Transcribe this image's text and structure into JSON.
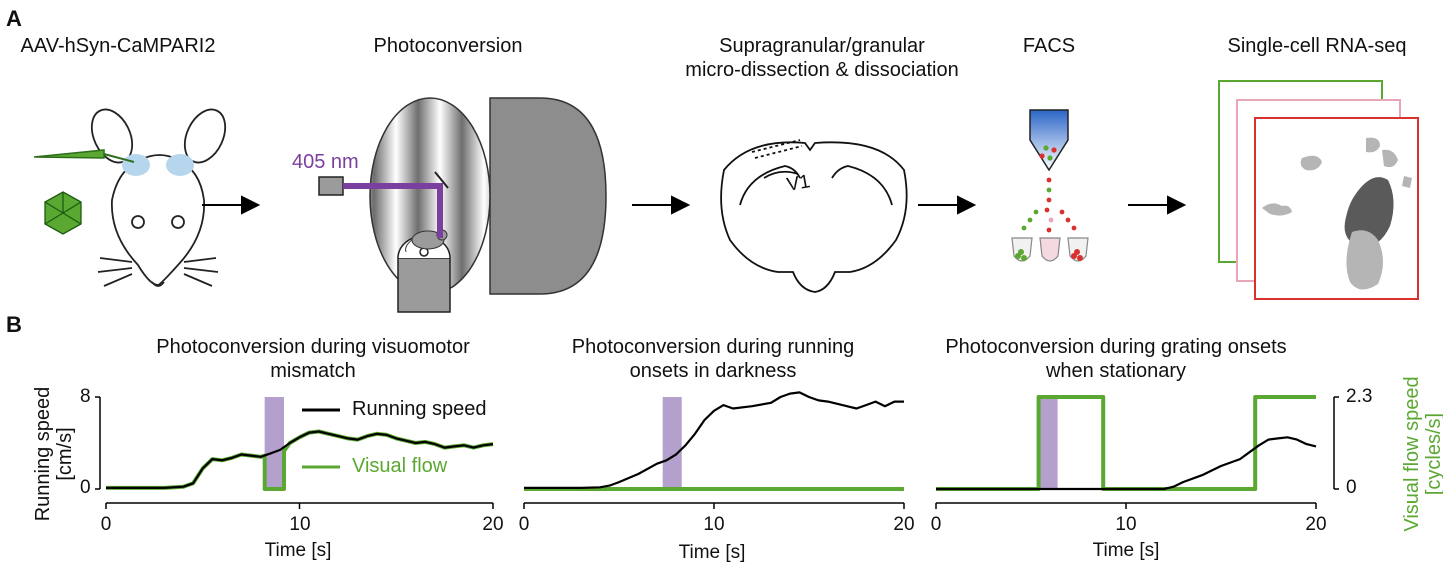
{
  "panel_a": {
    "letter": "A",
    "steps": [
      {
        "label": "AAV-hSyn-CaMPARI2"
      },
      {
        "label": "Photoconversion"
      },
      {
        "label_line1": "Supragranular/granular",
        "label_line2": "micro-dissection & dissociation"
      },
      {
        "label": "FACS"
      },
      {
        "label": "Single-cell RNA-seq"
      }
    ],
    "laser_label": "405 nm",
    "region_label": "V1",
    "colors": {
      "laser": "#7b3fa0",
      "green": "#5aa832",
      "red": "#d9322e",
      "pink": "#e8a6b6",
      "cluster_dark": "#5a5a5a",
      "cluster_light": "#b5b5b5"
    }
  },
  "panel_b": {
    "letter": "B",
    "y_left_label_line1": "Running speed",
    "y_left_label_line2": "[cm/s]",
    "y_left_ticks": [
      "8",
      "0"
    ],
    "y_right_label_line1": "Visual flow speed",
    "y_right_label_line2": "[cycles/s]",
    "y_right_ticks": [
      "2.3",
      "0"
    ],
    "legend_running": "Running speed",
    "legend_visual": "Visual flow",
    "colors": {
      "running": "#000000",
      "visual": "#5aa832",
      "shade": "#b4a0cc",
      "ylabel_right": "#5aa832"
    }
  },
  "chart_data": [
    {
      "type": "line",
      "title": "Photoconversion during visuomotor mismatch",
      "title_line1": "Photoconversion during visuomotor",
      "title_line2": "mismatch",
      "xlabel": "Time [s]",
      "ylabel": "Running speed [cm/s]",
      "xlim": [
        0,
        20
      ],
      "ylim": [
        0,
        8
      ],
      "xticks": [
        "0",
        "10",
        "20"
      ],
      "shaded_interval": [
        8.2,
        9.2
      ],
      "series": [
        {
          "name": "Running speed",
          "x": [
            0,
            1,
            2,
            3,
            4,
            4.5,
            5,
            5.5,
            6,
            6.5,
            7,
            7.5,
            8,
            8.5,
            9,
            9.5,
            10,
            10.5,
            11,
            11.5,
            12,
            12.5,
            13,
            13.5,
            14,
            14.5,
            15,
            15.5,
            16,
            16.5,
            17,
            17.5,
            18,
            18.5,
            19,
            19.5,
            20
          ],
          "y": [
            0.1,
            0.1,
            0.1,
            0.1,
            0.2,
            0.5,
            1.8,
            2.6,
            2.5,
            2.7,
            3.0,
            2.9,
            2.8,
            3.1,
            3.4,
            4.0,
            4.5,
            4.9,
            5.0,
            4.8,
            4.6,
            4.4,
            4.3,
            4.6,
            4.8,
            4.7,
            4.4,
            4.2,
            4.0,
            4.1,
            3.9,
            3.6,
            3.7,
            3.8,
            3.6,
            3.8,
            3.9
          ]
        },
        {
          "name": "Visual flow",
          "x": [
            0,
            1,
            2,
            3,
            4,
            4.5,
            5,
            5.5,
            6,
            6.5,
            7,
            7.5,
            8,
            8.2,
            8.2,
            9.2,
            9.2,
            9.5,
            10,
            10.5,
            11,
            11.5,
            12,
            12.5,
            13,
            13.5,
            14,
            14.5,
            15,
            15.5,
            16,
            16.5,
            17,
            17.5,
            18,
            18.5,
            19,
            19.5,
            20
          ],
          "y": [
            0.1,
            0.1,
            0.1,
            0.1,
            0.2,
            0.5,
            1.8,
            2.6,
            2.5,
            2.7,
            3.0,
            2.9,
            2.8,
            2.9,
            0,
            0,
            3.3,
            4.0,
            4.5,
            4.9,
            5.0,
            4.8,
            4.6,
            4.4,
            4.3,
            4.6,
            4.8,
            4.7,
            4.4,
            4.2,
            4.0,
            4.1,
            3.9,
            3.6,
            3.7,
            3.8,
            3.6,
            3.8,
            3.9
          ]
        }
      ]
    },
    {
      "type": "line",
      "title": "Photoconversion during running onsets in darkness",
      "title_line1": "Photoconversion during running",
      "title_line2": "onsets in darkness",
      "xlabel": "Time [s]",
      "xlim": [
        0,
        20
      ],
      "ylim": [
        0,
        8
      ],
      "xticks": [
        "0",
        "10",
        "20"
      ],
      "shaded_interval": [
        7.3,
        8.3
      ],
      "series": [
        {
          "name": "Running speed",
          "x": [
            0,
            1,
            2,
            3,
            4,
            4.5,
            5,
            6,
            7,
            7.5,
            8,
            8.5,
            9,
            9.5,
            10,
            10.5,
            11,
            12,
            13,
            13.5,
            14,
            14.5,
            15,
            15.5,
            16,
            17,
            17.5,
            18,
            18.5,
            19,
            19.5,
            20
          ],
          "y": [
            0.1,
            0.1,
            0.1,
            0.1,
            0.15,
            0.3,
            0.6,
            1.3,
            2.2,
            2.5,
            3.0,
            3.8,
            4.8,
            6.0,
            6.8,
            7.3,
            7.0,
            7.2,
            7.5,
            8.0,
            8.3,
            8.4,
            8.0,
            7.7,
            7.6,
            7.2,
            7.0,
            7.3,
            7.6,
            7.2,
            7.6,
            7.6
          ]
        },
        {
          "name": "Visual flow",
          "x": [
            0,
            20
          ],
          "y": [
            0,
            0
          ]
        }
      ]
    },
    {
      "type": "line",
      "title": "Photoconversion during grating onsets when stationary",
      "title_line1": "Photoconversion during grating onsets",
      "title_line2": "when stationary",
      "xlabel": "Time [s]",
      "ylabel": "Visual flow speed [cycles/s]",
      "xlim": [
        0,
        20
      ],
      "ylim": [
        0,
        8
      ],
      "xticks": [
        "0",
        "10",
        "20"
      ],
      "shaded_interval": [
        5.4,
        6.4
      ],
      "series": [
        {
          "name": "Running speed",
          "x": [
            0,
            2,
            4,
            6,
            8,
            10,
            12,
            12.5,
            13,
            14,
            15,
            16,
            16.5,
            17,
            17.5,
            18,
            18.5,
            19,
            19.5,
            20
          ],
          "y": [
            0,
            0,
            0,
            0,
            0,
            0,
            0,
            0.2,
            0.6,
            1.2,
            2.0,
            2.6,
            3.2,
            3.8,
            4.3,
            4.4,
            4.5,
            4.3,
            3.9,
            3.7
          ]
        },
        {
          "name": "Visual flow",
          "x": [
            0,
            5.4,
            5.4,
            8.8,
            8.8,
            16.8,
            16.8,
            20
          ],
          "y": [
            0,
            0,
            2.3,
            2.3,
            0,
            0,
            2.3,
            2.3
          ]
        }
      ]
    }
  ]
}
